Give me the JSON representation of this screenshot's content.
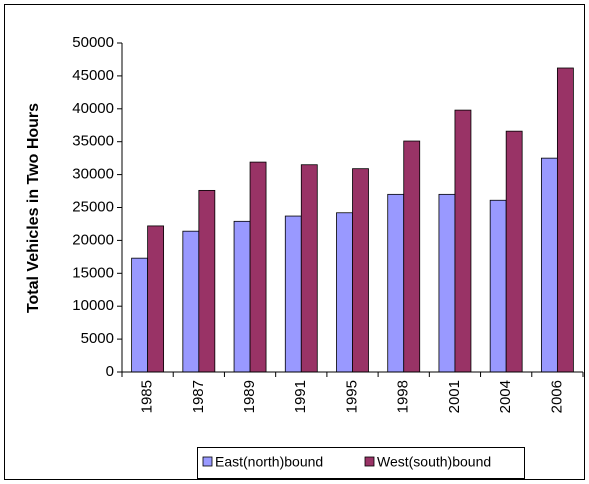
{
  "chart_data": {
    "type": "bar",
    "y_label": "Total Vehicles in Two Hours",
    "categories": [
      "1985",
      "1987",
      "1989",
      "1991",
      "1995",
      "1998",
      "2001",
      "2004",
      "2006"
    ],
    "series": [
      {
        "name": "East(north)bound",
        "color": "#9999ff",
        "values": [
          17300,
          21400,
          22900,
          23700,
          24200,
          27000,
          27000,
          26100,
          32500
        ]
      },
      {
        "name": "West(south)bound",
        "color": "#993366",
        "values": [
          22200,
          27600,
          31900,
          31500,
          30900,
          35100,
          39800,
          36600,
          46200
        ]
      }
    ],
    "ylim": [
      0,
      50000
    ],
    "yticks": [
      0,
      5000,
      10000,
      15000,
      20000,
      25000,
      30000,
      35000,
      40000,
      45000,
      50000
    ],
    "grid": false,
    "legend": "bottom"
  }
}
